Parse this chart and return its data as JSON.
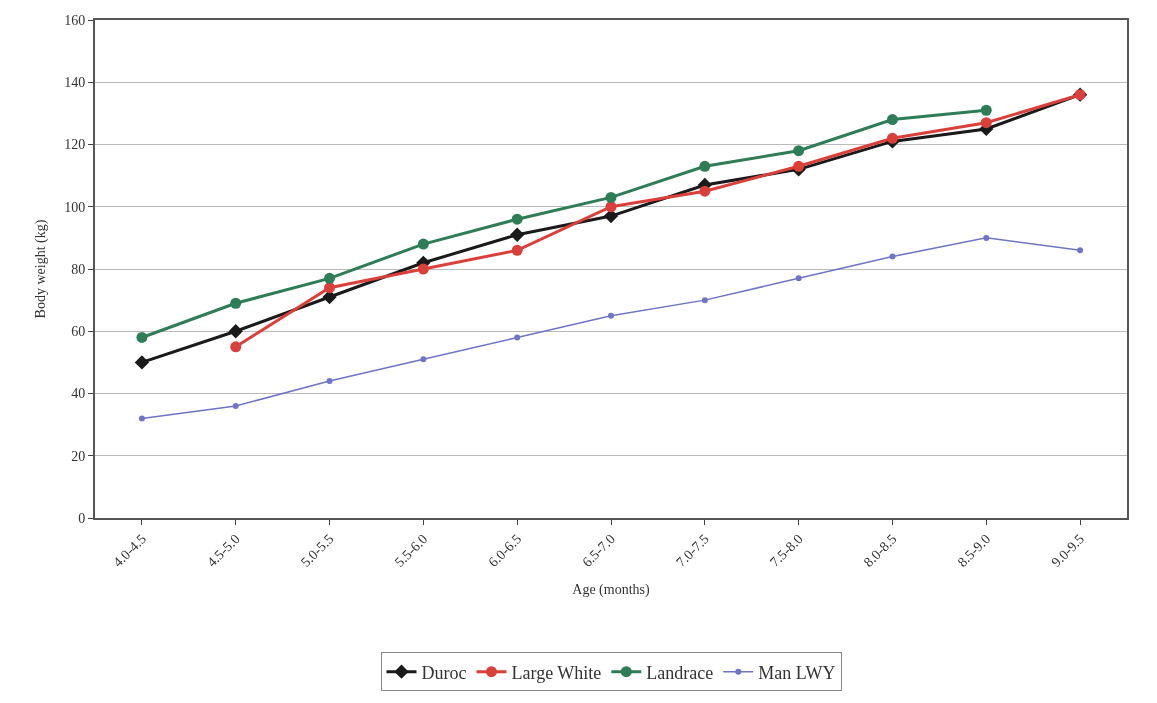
{
  "chart_data": {
    "type": "line",
    "xlabel": "Age (months)",
    "ylabel": "Body weight (kg)",
    "categories": [
      "4.0-4.5",
      "4.5-5.0",
      "5.0-5.5",
      "5.5-6.0",
      "6.0-6.5",
      "6.5-7.0",
      "7.0-7.5",
      "7.5-8.0",
      "8.0-8.5",
      "8.5-9.0",
      "9.0-9.5"
    ],
    "series": [
      {
        "name": "Duroc",
        "color": "#1a1a1a",
        "marker": "diamond",
        "values": [
          50,
          60,
          71,
          82,
          91,
          97,
          107,
          112,
          121,
          125,
          136
        ]
      },
      {
        "name": "Large White",
        "color": "#d9403a",
        "marker": "circle",
        "values": [
          null,
          55,
          74,
          80,
          86,
          100,
          105,
          113,
          122,
          127,
          136
        ]
      },
      {
        "name": "Landrace",
        "color": "#2e7d57",
        "marker": "circle",
        "values": [
          58,
          69,
          77,
          88,
          96,
          103,
          113,
          118,
          128,
          131,
          null
        ]
      },
      {
        "name": "Man LWY",
        "color": "#6f74c4",
        "marker": "circle",
        "values": [
          32,
          36,
          44,
          51,
          58,
          65,
          70,
          77,
          84,
          90,
          86
        ]
      }
    ],
    "ylim": [
      0,
      160
    ],
    "yticks": [
      0,
      20,
      40,
      60,
      80,
      100,
      120,
      140,
      160
    ],
    "grid": "y",
    "legend": "bottom"
  }
}
